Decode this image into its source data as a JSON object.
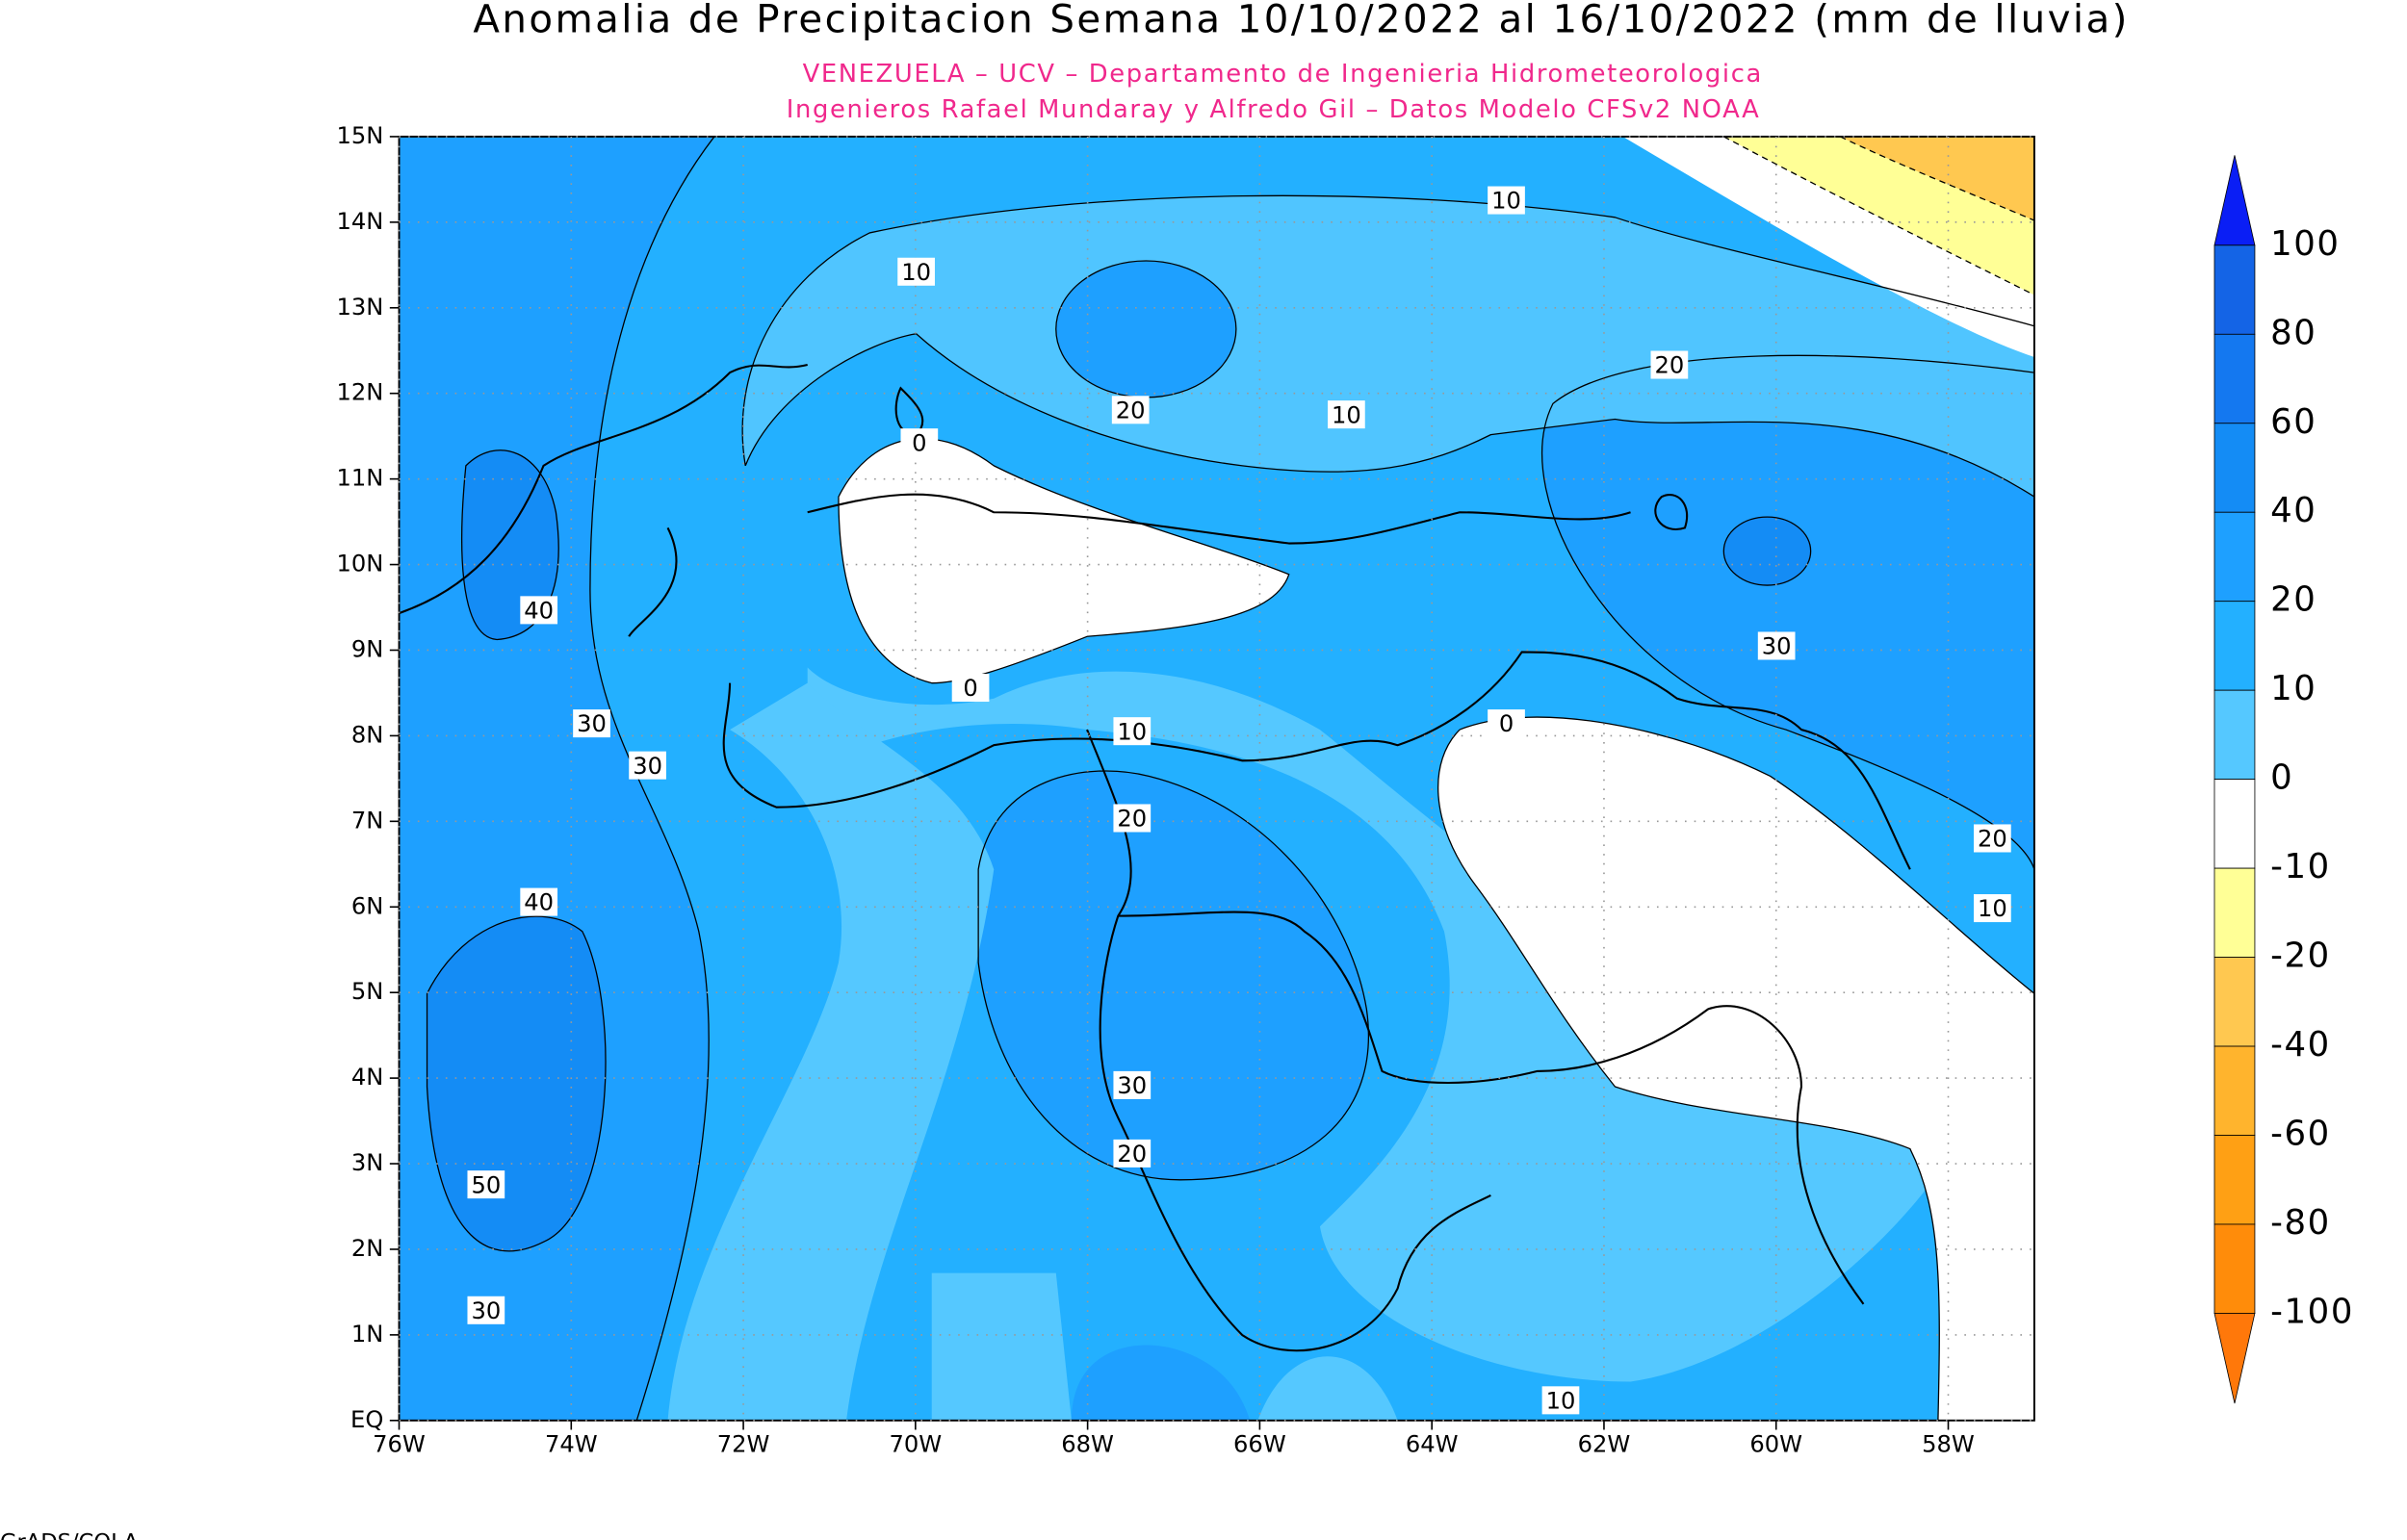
{
  "title": "Anomalia de Precipitacion Semana 10/10/2022 al 16/10/2022 (mm de lluvia)",
  "subtitle": [
    "VENEZUELA – UCV – Departamento de Ingenieria Hidrometeorologica",
    "Ingenieros Rafael Mundaray y Alfredo Gil – Datos Modelo CFSv2 NOAA"
  ],
  "map": {
    "xlim": [
      -76,
      -57
    ],
    "ylim": [
      0,
      15
    ],
    "xticks": [
      {
        "value": -76,
        "label": "76W"
      },
      {
        "value": -74,
        "label": "74W"
      },
      {
        "value": -72,
        "label": "72W"
      },
      {
        "value": -70,
        "label": "70W"
      },
      {
        "value": -68,
        "label": "68W"
      },
      {
        "value": -66,
        "label": "66W"
      },
      {
        "value": -64,
        "label": "64W"
      },
      {
        "value": -62,
        "label": "62W"
      },
      {
        "value": -60,
        "label": "60W"
      },
      {
        "value": -58,
        "label": "58W"
      }
    ],
    "yticks": [
      {
        "value": 0,
        "label": "EQ"
      },
      {
        "value": 1,
        "label": "1N"
      },
      {
        "value": 2,
        "label": "2N"
      },
      {
        "value": 3,
        "label": "3N"
      },
      {
        "value": 4,
        "label": "4N"
      },
      {
        "value": 5,
        "label": "5N"
      },
      {
        "value": 6,
        "label": "6N"
      },
      {
        "value": 7,
        "label": "7N"
      },
      {
        "value": 8,
        "label": "8N"
      },
      {
        "value": 9,
        "label": "9N"
      },
      {
        "value": 10,
        "label": "10N"
      },
      {
        "value": 11,
        "label": "11N"
      },
      {
        "value": 12,
        "label": "12N"
      },
      {
        "value": 13,
        "label": "13N"
      },
      {
        "value": 14,
        "label": "14N"
      },
      {
        "value": 15,
        "label": "15N"
      }
    ],
    "grid": true
  },
  "contour_labels": [
    10,
    10,
    20,
    10,
    20,
    0,
    40,
    30,
    30,
    30,
    0,
    0,
    10,
    20,
    20,
    40,
    10,
    30,
    20,
    50,
    30,
    10
  ],
  "colorbar": {
    "levels": [
      100,
      80,
      60,
      40,
      20,
      10,
      0,
      -10,
      -20,
      -40,
      -60,
      -80,
      -100
    ],
    "colors": [
      "#0a1ef5",
      "#1464e6",
      "#1478f0",
      "#148cf5",
      "#1ea0ff",
      "#23b0ff",
      "#55c8ff",
      "#ffffff",
      "#ffff96",
      "#ffc850",
      "#ffb42d",
      "#ffa014",
      "#ff8c0a",
      "#ff780a"
    ]
  },
  "footer": "GrADS/COLA"
}
